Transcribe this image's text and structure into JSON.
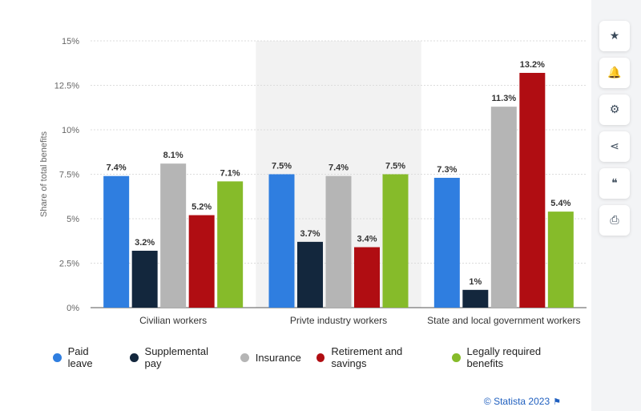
{
  "chart_data": {
    "type": "bar",
    "ylabel": "Share of total benefits",
    "ylim": [
      0,
      15
    ],
    "yticks": [
      "0%",
      "2.5%",
      "5%",
      "7.5%",
      "10%",
      "12.5%",
      "15%"
    ],
    "categories": [
      "Civilian workers",
      "Privte industry workers",
      "State and local government workers"
    ],
    "series": [
      {
        "name": "Paid leave",
        "color": "#2f7ee0",
        "values": [
          7.4,
          7.5,
          7.3
        ],
        "labels": [
          "7.4%",
          "7.5%",
          "7.3%"
        ]
      },
      {
        "name": "Supplemental pay",
        "color": "#13273d",
        "values": [
          3.2,
          3.7,
          1.0
        ],
        "labels": [
          "3.2%",
          "3.7%",
          "1%"
        ]
      },
      {
        "name": "Insurance",
        "color": "#b5b5b5",
        "values": [
          8.1,
          7.4,
          11.3
        ],
        "labels": [
          "8.1%",
          "7.4%",
          "11.3%"
        ]
      },
      {
        "name": "Retirement and savings",
        "color": "#b00d12",
        "values": [
          5.2,
          3.4,
          13.2
        ],
        "labels": [
          "5.2%",
          "3.4%",
          "13.2%"
        ]
      },
      {
        "name": "Legally required benefits",
        "color": "#86bb2a",
        "values": [
          7.1,
          7.5,
          5.4
        ],
        "labels": [
          "7.1%",
          "7.5%",
          "5.4%"
        ]
      }
    ],
    "grid": true,
    "legend_position": "bottom",
    "highlighted_category": "Privte industry workers"
  },
  "credit": {
    "text": "© Statista 2023",
    "flag_icon": "flag-icon"
  },
  "sidebar": {
    "items": [
      {
        "name": "star-icon",
        "glyph": "★"
      },
      {
        "name": "bell-icon",
        "glyph": "🔔"
      },
      {
        "name": "gear-icon",
        "glyph": "⚙"
      },
      {
        "name": "share-icon",
        "glyph": "⋖"
      },
      {
        "name": "quote-icon",
        "glyph": "❝"
      },
      {
        "name": "print-icon",
        "glyph": "⎙"
      }
    ]
  }
}
